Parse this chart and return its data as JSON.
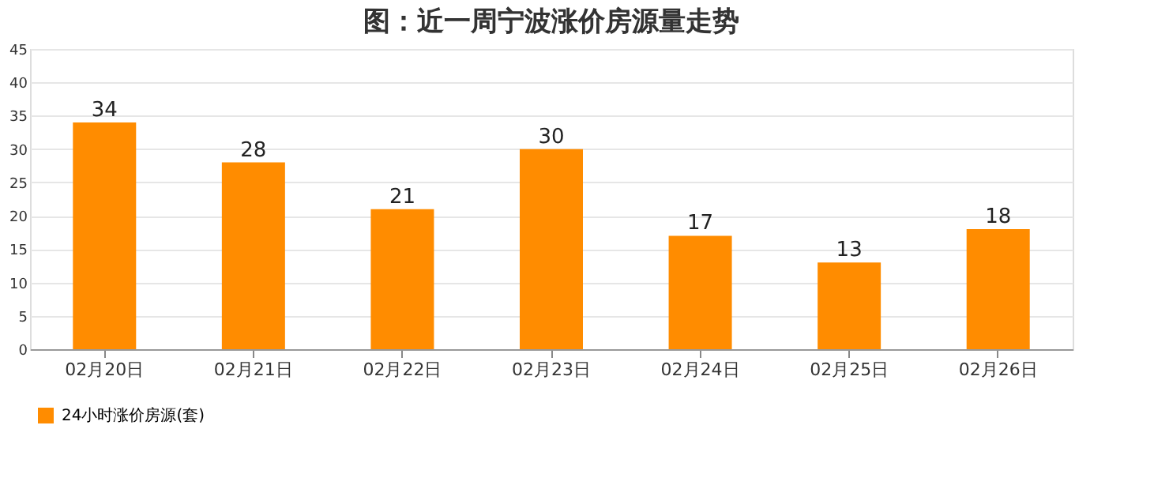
{
  "chart_data": {
    "type": "bar",
    "title": "图：近一周宁波涨价房源量走势",
    "categories": [
      "02月20日",
      "02月21日",
      "02月22日",
      "02月23日",
      "02月24日",
      "02月25日",
      "02月26日"
    ],
    "series": [
      {
        "name": "24小时涨价房源(套)",
        "color": "#ff8c00",
        "values": [
          34,
          28,
          21,
          30,
          17,
          13,
          18
        ]
      }
    ],
    "ylim": [
      0,
      45
    ],
    "yticks": [
      0,
      5,
      10,
      15,
      20,
      25,
      30,
      35,
      40,
      45
    ],
    "grid": "y",
    "legend": "bottom",
    "data_labels": true
  }
}
